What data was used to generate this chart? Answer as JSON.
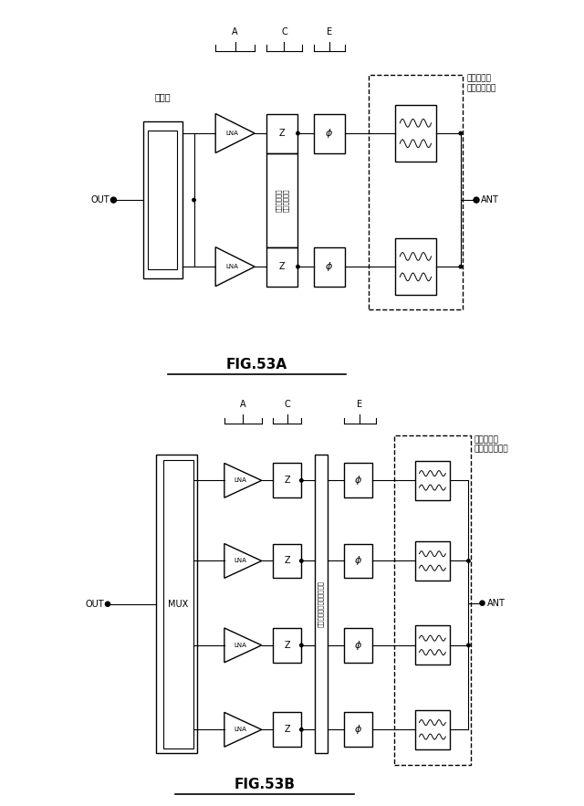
{
  "bg_color": "#ffffff",
  "line_color": "#000000",
  "fig53a": {
    "title": "FIG.53A",
    "label_out": "OUT",
    "label_ant": "ANT",
    "label_coupler": "結合器",
    "label_filter": "フィルタ／\nダイプレクサ",
    "label_switch": "スイッチング\nネットワーク",
    "label_A": "A",
    "label_C": "C",
    "label_E": "E",
    "rows": 2
  },
  "fig53b": {
    "title": "FIG.53B",
    "label_out": "OUT",
    "label_ant": "ANT",
    "label_mux": "MUX",
    "label_filter": "フィルタ／\nマルチプレクサ",
    "label_switch": "スイッチングネットワーク",
    "label_A": "A",
    "label_C": "C",
    "label_E": "E",
    "rows": 4
  }
}
